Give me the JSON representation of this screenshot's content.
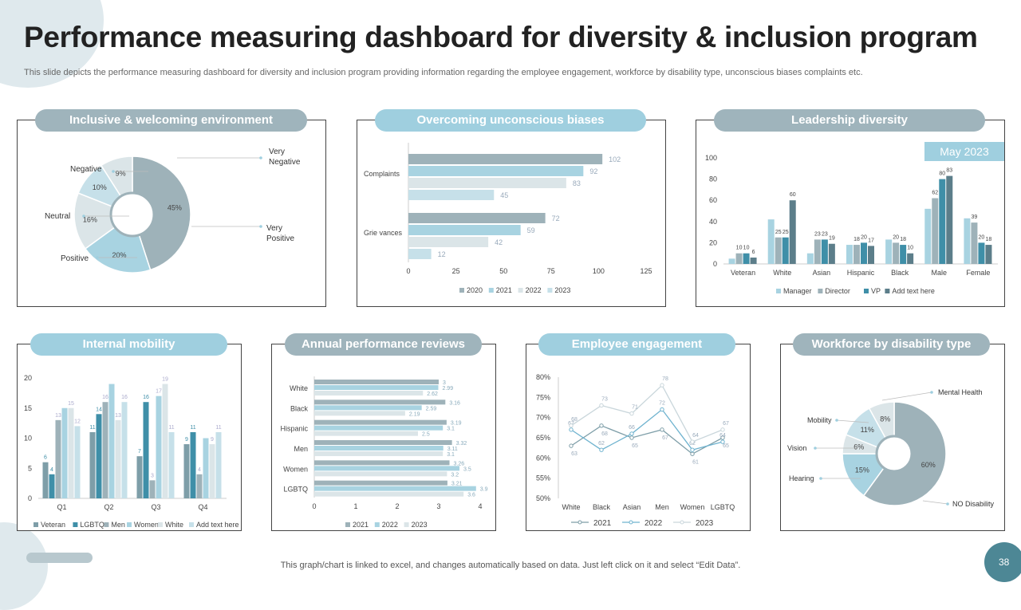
{
  "page": {
    "title": "Performance measuring dashboard for diversity & inclusion program",
    "subtitle": "This slide depicts the performance measuring dashboard for diversity and inclusion program providing information regarding the employee engagement, workforce by disability type, unconscious biases complaints etc.",
    "footer": "This graph/chart is linked to excel, and changes automatically based on data. Just left click on it and select “Edit Data”.",
    "page_number": "38"
  },
  "colors": {
    "c1": "#9eb2b9",
    "c2": "#a8d3e1",
    "c3": "#dbe5e8",
    "c4": "#7e9ea8",
    "c5": "#3f8fa8",
    "c6": "#5c7e8a",
    "c7": "#c6e0e9"
  },
  "chart_data": [
    {
      "id": "inclusive",
      "type": "pie",
      "title": "Inclusive & welcoming environment",
      "labels": [
        "Very Positive",
        "Positive",
        "Neutral",
        "Negative",
        "Very Negative"
      ],
      "values": [
        45,
        20,
        16,
        10,
        9
      ],
      "value_labels": [
        "45%",
        "20%",
        "16%",
        "10%",
        "9%"
      ]
    },
    {
      "id": "biases",
      "type": "bar",
      "orientation": "horizontal",
      "title": "Overcoming unconscious biases",
      "categories": [
        "Complaints",
        "Grie vances"
      ],
      "series": [
        {
          "name": "2020",
          "values": [
            102,
            72
          ]
        },
        {
          "name": "2021",
          "values": [
            92,
            59
          ]
        },
        {
          "name": "2022",
          "values": [
            83,
            42
          ]
        },
        {
          "name": "2023",
          "values": [
            45,
            12
          ]
        }
      ],
      "xlim": [
        0,
        125
      ],
      "xticks": [
        "0",
        "25",
        "50",
        "75",
        "100",
        "125"
      ]
    },
    {
      "id": "leadership",
      "type": "bar",
      "title": "Leadership diversity",
      "badge": "May 2023",
      "categories": [
        "Veteran",
        "White",
        "Asian",
        "Hispanic",
        "Black",
        "Male",
        "Female"
      ],
      "series": [
        {
          "name": "Manager",
          "values": [
            5,
            42,
            10,
            18,
            23,
            52,
            43
          ]
        },
        {
          "name": "Director",
          "values": [
            10,
            25,
            23,
            18,
            20,
            62,
            39
          ]
        },
        {
          "name": "VP",
          "values": [
            10,
            25,
            23,
            20,
            18,
            80,
            20
          ]
        },
        {
          "name": "Add text here",
          "values": [
            6,
            60,
            19,
            17,
            10,
            83,
            18
          ]
        }
      ],
      "data_labels": [
        [
          "",
          "",
          "",
          "",
          "",
          "",
          ""
        ],
        [
          "10",
          "25",
          "23",
          "18",
          "20",
          "62",
          "39"
        ],
        [
          "10",
          "25",
          "23",
          "20",
          "18",
          "80",
          "20"
        ],
        [
          "6",
          "60",
          "19",
          "17",
          "10",
          "83",
          "18"
        ]
      ],
      "ylim": [
        0,
        100
      ],
      "yticks": [
        "0",
        "20",
        "40",
        "60",
        "80",
        "100"
      ]
    },
    {
      "id": "mobility",
      "type": "bar",
      "title": "Internal mobility",
      "categories": [
        "Q1",
        "Q2",
        "Q3",
        "Q4"
      ],
      "series": [
        {
          "name": "Veteran",
          "values": [
            6,
            11,
            7,
            9
          ]
        },
        {
          "name": "LGBTQ",
          "values": [
            4,
            14,
            16,
            11
          ]
        },
        {
          "name": "Men",
          "values": [
            13,
            16,
            3,
            4
          ]
        },
        {
          "name": "Women",
          "values": [
            15,
            19,
            17,
            10
          ]
        },
        {
          "name": "White",
          "values": [
            15,
            13,
            19,
            9
          ]
        },
        {
          "name": "Add text here",
          "values": [
            12,
            16,
            11,
            11
          ]
        }
      ],
      "data_labels": [
        [
          "6",
          "11",
          "7",
          "9"
        ],
        [
          "4",
          "14",
          "16",
          "11"
        ],
        [
          "13",
          "16",
          "3",
          "4"
        ],
        [
          "",
          "",
          "17",
          ""
        ],
        [
          "15",
          "13",
          "19",
          "9"
        ],
        [
          "12",
          "16",
          "11",
          "11"
        ]
      ],
      "ylim": [
        0,
        20
      ],
      "yticks": [
        "0",
        "5",
        "10",
        "15",
        "20"
      ]
    },
    {
      "id": "reviews",
      "type": "bar",
      "orientation": "horizontal",
      "title": "Annual performance reviews",
      "categories": [
        "White",
        "Black",
        "Hispanic",
        "Men",
        "Women",
        "LGBTQ"
      ],
      "series": [
        {
          "name": "2021",
          "values": [
            3,
            3.16,
            3.19,
            3.32,
            3.26,
            3.21
          ]
        },
        {
          "name": "2022",
          "values": [
            2.99,
            2.59,
            3.1,
            3.11,
            3.5,
            3.9
          ]
        },
        {
          "name": "2023",
          "values": [
            2.62,
            2.19,
            2.5,
            3.1,
            3.2,
            3.6
          ]
        }
      ],
      "data_labels": [
        [
          "3",
          "3.16",
          "3.19",
          "3.32",
          "3.26",
          "3.21"
        ],
        [
          "2.99",
          "2.59",
          "3.1",
          "3.11",
          "3.5",
          "3.9"
        ],
        [
          "2.62",
          "2.19",
          "2.5",
          "3.1",
          "3.2",
          "3.6"
        ]
      ],
      "xlim": [
        0,
        4
      ],
      "xticks": [
        "0",
        "1",
        "2",
        "3",
        "4"
      ]
    },
    {
      "id": "engagement",
      "type": "line",
      "title": "Employee engagement",
      "categories": [
        "White",
        "Black",
        "Asian",
        "Men",
        "Women",
        "LGBTQ"
      ],
      "series": [
        {
          "name": "2021",
          "values": [
            63,
            68,
            65,
            67,
            61,
            65
          ]
        },
        {
          "name": "2022",
          "values": [
            67,
            62,
            66,
            72,
            62,
            64
          ]
        },
        {
          "name": "2023",
          "values": [
            68,
            73,
            71,
            78,
            64,
            67
          ]
        }
      ],
      "ylim": [
        50,
        80
      ],
      "yticks": [
        "50%",
        "55%",
        "60%",
        "65%",
        "70%",
        "75%",
        "80%"
      ]
    },
    {
      "id": "disability",
      "type": "pie",
      "title": "Workforce by disability type",
      "labels": [
        "NO Disability",
        "Hearing",
        "Vision",
        "Mobility",
        "Mental Health"
      ],
      "values": [
        60,
        15,
        6,
        11,
        8
      ],
      "value_labels": [
        "60%",
        "15%",
        "6%",
        "11%",
        "8%"
      ]
    }
  ]
}
